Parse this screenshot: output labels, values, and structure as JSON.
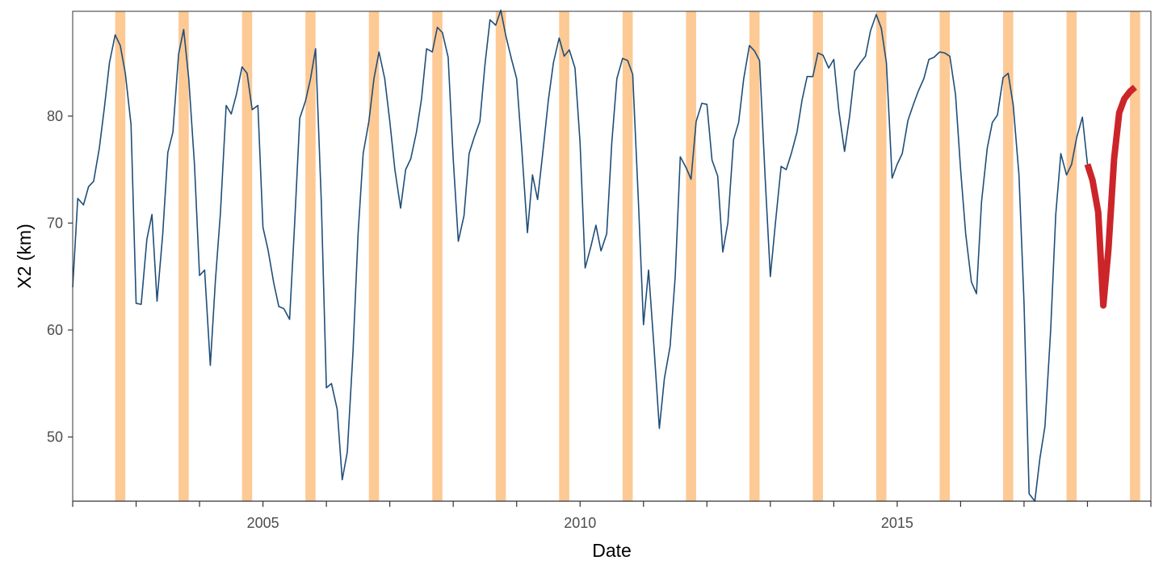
{
  "chart_data": {
    "type": "line",
    "xlabel": "Date",
    "ylabel": "X2 (km)",
    "xlim": [
      2002.0,
      2019.0
    ],
    "ylim": [
      44.0,
      89.8
    ],
    "x_ticks": [
      {
        "value": 2005,
        "label": "2005"
      },
      {
        "value": 2010,
        "label": "2010"
      },
      {
        "value": 2015,
        "label": "2015"
      }
    ],
    "x_minor_ticks": [
      2002,
      2003,
      2004,
      2005,
      2006,
      2007,
      2008,
      2009,
      2010,
      2011,
      2012,
      2013,
      2014,
      2015,
      2016,
      2017,
      2018,
      2019
    ],
    "y_ticks": [
      {
        "value": 50,
        "label": "50"
      },
      {
        "value": 60,
        "label": "60"
      },
      {
        "value": 70,
        "label": "70"
      },
      {
        "value": 80,
        "label": "80"
      }
    ],
    "grid": false,
    "legend": "none",
    "highlight_bands": {
      "color": "#FDC994",
      "ranges": [
        [
          2002.67,
          2002.83
        ],
        [
          2003.67,
          2003.83
        ],
        [
          2004.67,
          2004.83
        ],
        [
          2005.67,
          2005.83
        ],
        [
          2006.67,
          2006.83
        ],
        [
          2007.67,
          2007.83
        ],
        [
          2008.67,
          2008.83
        ],
        [
          2009.67,
          2009.83
        ],
        [
          2010.67,
          2010.83
        ],
        [
          2011.67,
          2011.83
        ],
        [
          2012.67,
          2012.83
        ],
        [
          2013.67,
          2013.83
        ],
        [
          2014.67,
          2014.83
        ],
        [
          2015.67,
          2015.83
        ],
        [
          2016.67,
          2016.83
        ],
        [
          2017.67,
          2017.83
        ],
        [
          2018.67,
          2018.83
        ]
      ]
    },
    "series": [
      {
        "color": "#1F4E79",
        "style": "thin",
        "points": [
          [
            2002.0,
            64.0
          ],
          [
            2002.08,
            72.3
          ],
          [
            2002.17,
            71.7
          ],
          [
            2002.25,
            73.4
          ],
          [
            2002.33,
            73.9
          ],
          [
            2002.42,
            77.0
          ],
          [
            2002.5,
            80.8
          ],
          [
            2002.58,
            85.0
          ],
          [
            2002.67,
            87.6
          ],
          [
            2002.75,
            86.6
          ],
          [
            2002.83,
            84.0
          ],
          [
            2002.92,
            79.2
          ],
          [
            2003.0,
            62.5
          ],
          [
            2003.08,
            62.4
          ],
          [
            2003.17,
            68.5
          ],
          [
            2003.25,
            70.8
          ],
          [
            2003.33,
            62.7
          ],
          [
            2003.42,
            69.0
          ],
          [
            2003.5,
            76.6
          ],
          [
            2003.58,
            78.5
          ],
          [
            2003.67,
            85.8
          ],
          [
            2003.75,
            88.1
          ],
          [
            2003.83,
            83.5
          ],
          [
            2003.92,
            75.5
          ],
          [
            2004.0,
            65.1
          ],
          [
            2004.08,
            65.6
          ],
          [
            2004.17,
            56.7
          ],
          [
            2004.25,
            64.6
          ],
          [
            2004.33,
            71.0
          ],
          [
            2004.42,
            81.0
          ],
          [
            2004.5,
            80.2
          ],
          [
            2004.58,
            82.0
          ],
          [
            2004.67,
            84.6
          ],
          [
            2004.75,
            84.0
          ],
          [
            2004.83,
            80.6
          ],
          [
            2004.92,
            81.0
          ],
          [
            2005.0,
            69.6
          ],
          [
            2005.08,
            67.5
          ],
          [
            2005.17,
            64.4
          ],
          [
            2005.25,
            62.2
          ],
          [
            2005.33,
            62.0
          ],
          [
            2005.42,
            61.0
          ],
          [
            2005.5,
            70.0
          ],
          [
            2005.58,
            79.8
          ],
          [
            2005.67,
            81.4
          ],
          [
            2005.75,
            83.5
          ],
          [
            2005.83,
            86.3
          ],
          [
            2005.92,
            72.0
          ],
          [
            2006.0,
            54.6
          ],
          [
            2006.08,
            55.0
          ],
          [
            2006.17,
            52.6
          ],
          [
            2006.25,
            46.0
          ],
          [
            2006.33,
            48.6
          ],
          [
            2006.42,
            58.0
          ],
          [
            2006.5,
            69.0
          ],
          [
            2006.58,
            76.5
          ],
          [
            2006.67,
            79.5
          ],
          [
            2006.75,
            83.5
          ],
          [
            2006.83,
            86.0
          ],
          [
            2006.92,
            83.5
          ],
          [
            2007.0,
            79.5
          ],
          [
            2007.08,
            75.0
          ],
          [
            2007.17,
            71.4
          ],
          [
            2007.25,
            75.0
          ],
          [
            2007.33,
            76.0
          ],
          [
            2007.42,
            78.5
          ],
          [
            2007.5,
            81.6
          ],
          [
            2007.58,
            86.3
          ],
          [
            2007.67,
            86.0
          ],
          [
            2007.75,
            88.3
          ],
          [
            2007.83,
            87.8
          ],
          [
            2007.92,
            85.5
          ],
          [
            2008.0,
            76.0
          ],
          [
            2008.08,
            68.3
          ],
          [
            2008.17,
            70.7
          ],
          [
            2008.25,
            76.5
          ],
          [
            2008.33,
            78.0
          ],
          [
            2008.42,
            79.5
          ],
          [
            2008.5,
            84.8
          ],
          [
            2008.58,
            89.0
          ],
          [
            2008.67,
            88.5
          ],
          [
            2008.75,
            89.9
          ],
          [
            2008.83,
            87.5
          ],
          [
            2008.92,
            85.3
          ],
          [
            2009.0,
            83.5
          ],
          [
            2009.08,
            77.0
          ],
          [
            2009.17,
            69.1
          ],
          [
            2009.25,
            74.5
          ],
          [
            2009.33,
            72.2
          ],
          [
            2009.42,
            77.0
          ],
          [
            2009.5,
            81.5
          ],
          [
            2009.58,
            85.0
          ],
          [
            2009.67,
            87.3
          ],
          [
            2009.75,
            85.6
          ],
          [
            2009.83,
            86.2
          ],
          [
            2009.92,
            84.5
          ],
          [
            2010.0,
            77.5
          ],
          [
            2010.08,
            65.8
          ],
          [
            2010.17,
            67.8
          ],
          [
            2010.25,
            69.8
          ],
          [
            2010.33,
            67.4
          ],
          [
            2010.42,
            69.0
          ],
          [
            2010.5,
            77.5
          ],
          [
            2010.58,
            83.5
          ],
          [
            2010.67,
            85.4
          ],
          [
            2010.75,
            85.2
          ],
          [
            2010.83,
            83.9
          ],
          [
            2010.92,
            72.0
          ],
          [
            2011.0,
            60.5
          ],
          [
            2011.08,
            65.6
          ],
          [
            2011.17,
            58.0
          ],
          [
            2011.25,
            50.8
          ],
          [
            2011.33,
            55.5
          ],
          [
            2011.42,
            58.5
          ],
          [
            2011.5,
            65.0
          ],
          [
            2011.58,
            76.2
          ],
          [
            2011.67,
            75.2
          ],
          [
            2011.75,
            74.1
          ],
          [
            2011.83,
            79.5
          ],
          [
            2011.92,
            81.2
          ],
          [
            2012.0,
            81.1
          ],
          [
            2012.08,
            75.9
          ],
          [
            2012.17,
            74.4
          ],
          [
            2012.25,
            67.3
          ],
          [
            2012.33,
            70.0
          ],
          [
            2012.42,
            77.8
          ],
          [
            2012.5,
            79.4
          ],
          [
            2012.58,
            83.5
          ],
          [
            2012.67,
            86.6
          ],
          [
            2012.75,
            86.1
          ],
          [
            2012.83,
            85.2
          ],
          [
            2012.92,
            74.0
          ],
          [
            2013.0,
            65.0
          ],
          [
            2013.08,
            70.0
          ],
          [
            2013.17,
            75.3
          ],
          [
            2013.25,
            75.0
          ],
          [
            2013.33,
            76.5
          ],
          [
            2013.42,
            78.5
          ],
          [
            2013.5,
            81.5
          ],
          [
            2013.58,
            83.7
          ],
          [
            2013.67,
            83.7
          ],
          [
            2013.75,
            85.9
          ],
          [
            2013.83,
            85.7
          ],
          [
            2013.92,
            84.5
          ],
          [
            2014.0,
            85.3
          ],
          [
            2014.08,
            80.5
          ],
          [
            2014.17,
            76.7
          ],
          [
            2014.25,
            80.0
          ],
          [
            2014.33,
            84.2
          ],
          [
            2014.42,
            85.0
          ],
          [
            2014.5,
            85.6
          ],
          [
            2014.58,
            88.0
          ],
          [
            2014.67,
            89.5
          ],
          [
            2014.75,
            88.2
          ],
          [
            2014.83,
            85.0
          ],
          [
            2014.92,
            74.2
          ],
          [
            2015.0,
            75.5
          ],
          [
            2015.08,
            76.5
          ],
          [
            2015.17,
            79.6
          ],
          [
            2015.25,
            81.0
          ],
          [
            2015.33,
            82.3
          ],
          [
            2015.42,
            83.5
          ],
          [
            2015.5,
            85.3
          ],
          [
            2015.58,
            85.5
          ],
          [
            2015.67,
            86.0
          ],
          [
            2015.75,
            85.9
          ],
          [
            2015.83,
            85.6
          ],
          [
            2015.92,
            82.0
          ],
          [
            2016.0,
            75.0
          ],
          [
            2016.08,
            69.0
          ],
          [
            2016.17,
            64.5
          ],
          [
            2016.25,
            63.4
          ],
          [
            2016.33,
            72.0
          ],
          [
            2016.42,
            77.0
          ],
          [
            2016.5,
            79.4
          ],
          [
            2016.58,
            80.1
          ],
          [
            2016.67,
            83.6
          ],
          [
            2016.75,
            84.0
          ],
          [
            2016.83,
            81.0
          ],
          [
            2016.92,
            74.5
          ],
          [
            2017.0,
            62.5
          ],
          [
            2017.08,
            44.7
          ],
          [
            2017.17,
            44.0
          ],
          [
            2017.25,
            48.0
          ],
          [
            2017.33,
            51.0
          ],
          [
            2017.42,
            60.0
          ],
          [
            2017.5,
            70.8
          ],
          [
            2017.58,
            76.5
          ],
          [
            2017.67,
            74.5
          ],
          [
            2017.75,
            75.5
          ],
          [
            2017.83,
            78.0
          ],
          [
            2017.92,
            79.9
          ],
          [
            2018.0,
            75.5
          ]
        ]
      },
      {
        "color": "#CC2529",
        "style": "thick",
        "points": [
          [
            2018.0,
            75.5
          ],
          [
            2018.08,
            74.0
          ],
          [
            2018.17,
            71.0
          ],
          [
            2018.25,
            62.3
          ],
          [
            2018.33,
            67.5
          ],
          [
            2018.42,
            76.0
          ],
          [
            2018.5,
            80.3
          ],
          [
            2018.58,
            81.6
          ],
          [
            2018.67,
            82.3
          ],
          [
            2018.75,
            82.7
          ]
        ]
      }
    ]
  }
}
